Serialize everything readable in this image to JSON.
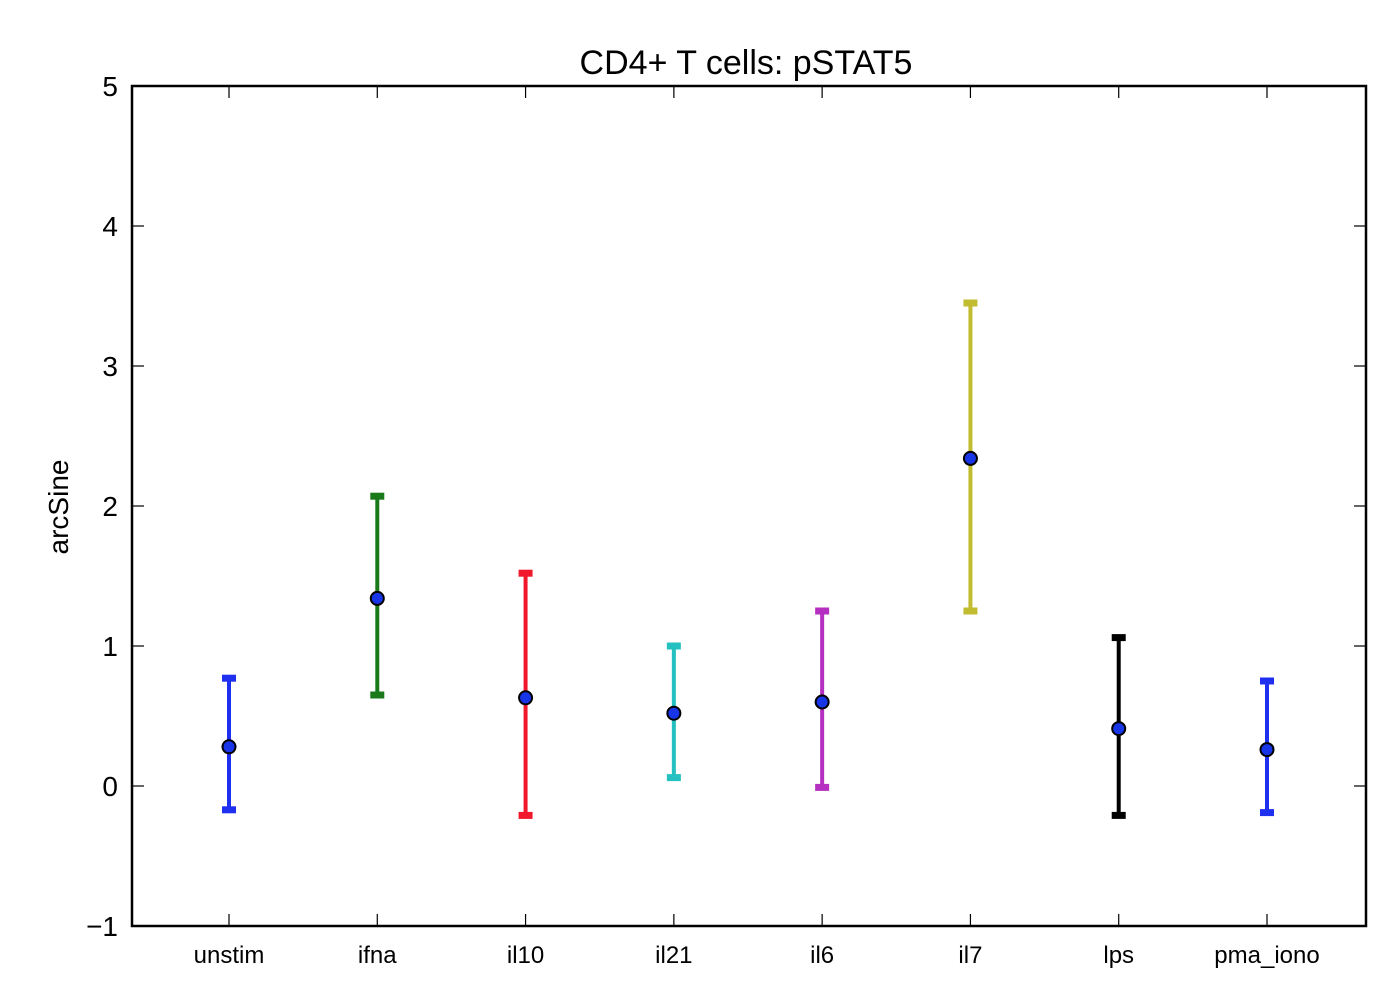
{
  "chart_data": {
    "type": "errorbar",
    "title": "CD4+ T cells: pSTAT5",
    "xlabel": "",
    "ylabel": "arcSine",
    "ylim": [
      -1,
      5
    ],
    "yticks": [
      -1,
      0,
      1,
      2,
      3,
      4,
      5
    ],
    "ytick_labels": [
      "−1",
      "0",
      "1",
      "2",
      "3",
      "4",
      "5"
    ],
    "grid": false,
    "categories": [
      "unstim",
      "ifna",
      "il10",
      "il21",
      "il6",
      "il7",
      "lps",
      "pma_iono"
    ],
    "points": [
      {
        "category": "unstim",
        "mean": 0.28,
        "lower": -0.17,
        "upper": 0.77,
        "color": "#1f2ff0"
      },
      {
        "category": "ifna",
        "mean": 1.34,
        "lower": 0.65,
        "upper": 2.07,
        "color": "#1a7a1a"
      },
      {
        "category": "il10",
        "mean": 0.63,
        "lower": -0.21,
        "upper": 1.52,
        "color": "#f0182a"
      },
      {
        "category": "il21",
        "mean": 0.52,
        "lower": 0.06,
        "upper": 1.0,
        "color": "#25c0c0"
      },
      {
        "category": "il6",
        "mean": 0.6,
        "lower": -0.01,
        "upper": 1.25,
        "color": "#b52fc0"
      },
      {
        "category": "il7",
        "mean": 2.34,
        "lower": 1.25,
        "upper": 3.45,
        "color": "#c2bc30"
      },
      {
        "category": "lps",
        "mean": 0.41,
        "lower": -0.21,
        "upper": 1.06,
        "color": "#000000"
      },
      {
        "category": "pma_iono",
        "mean": 0.26,
        "lower": -0.19,
        "upper": 0.75,
        "color": "#1f2ff0"
      }
    ],
    "marker_color": "#1836e8"
  }
}
